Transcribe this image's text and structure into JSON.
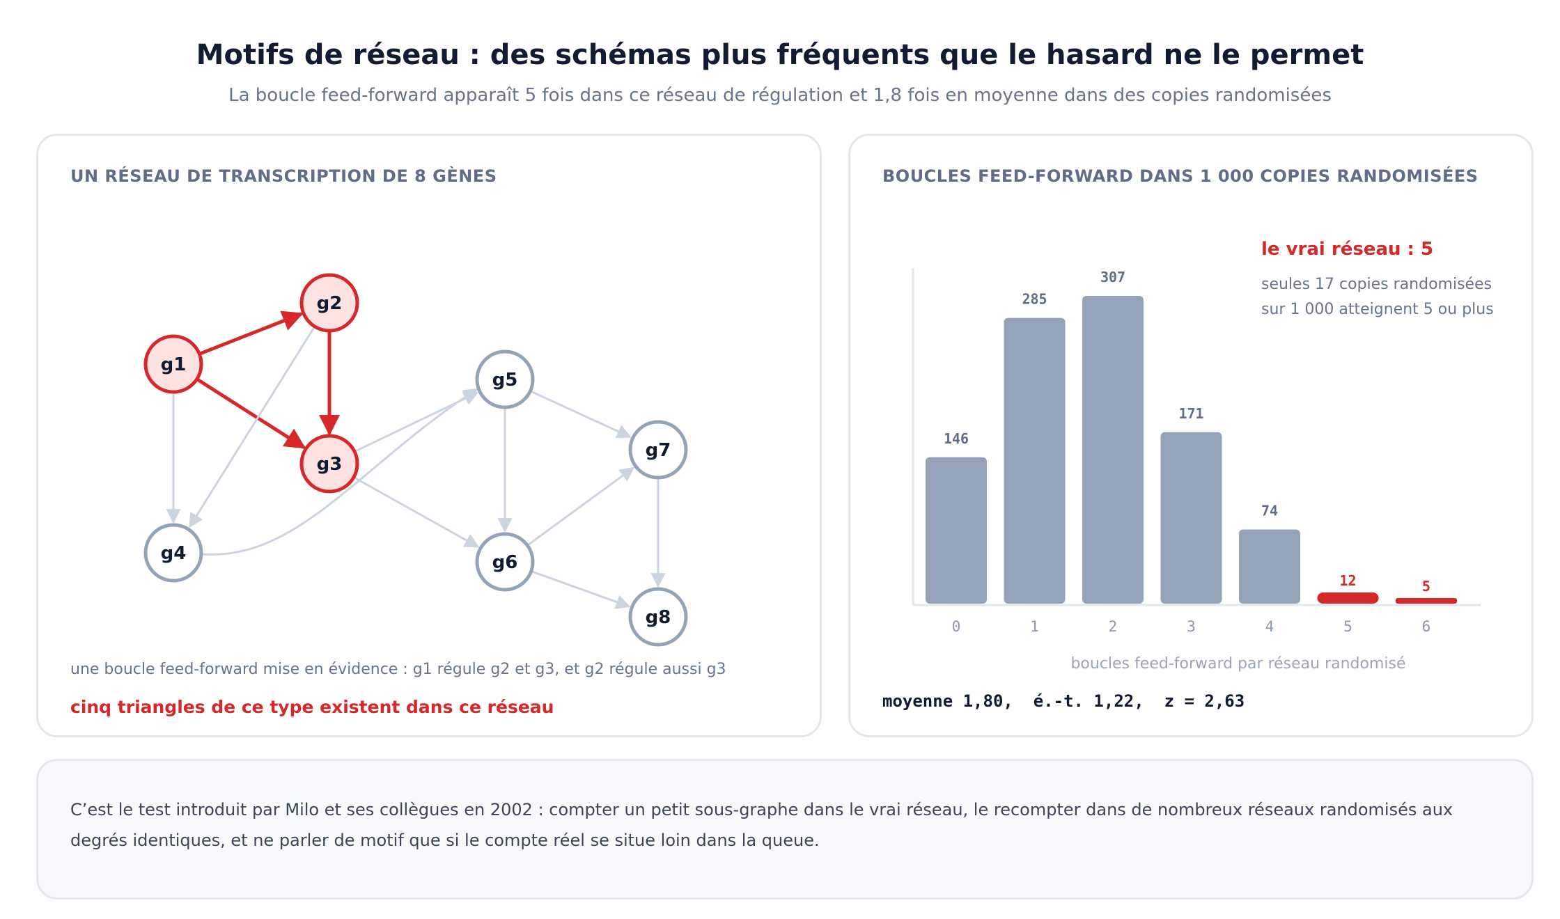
{
  "header": {
    "title": "Motifs de réseau : des schémas plus fréquents que le hasard ne le permet",
    "subtitle": "La boucle feed-forward apparaît 5 fois dans ce réseau de régulation et 1,8 fois en moyenne dans des copies randomisées"
  },
  "network_panel": {
    "heading": "UN RÉSEAU DE TRANSCRIPTION DE 8 GÈNES",
    "nodes": [
      "g1",
      "g2",
      "g3",
      "g4",
      "g5",
      "g6",
      "g7",
      "g8"
    ],
    "highlighted_nodes": [
      "g1",
      "g2",
      "g3"
    ],
    "edges": [
      {
        "from": "g1",
        "to": "g2",
        "highlighted": true
      },
      {
        "from": "g1",
        "to": "g3",
        "highlighted": true
      },
      {
        "from": "g2",
        "to": "g3",
        "highlighted": true
      },
      {
        "from": "g1",
        "to": "g4",
        "highlighted": false
      },
      {
        "from": "g2",
        "to": "g4",
        "highlighted": false
      },
      {
        "from": "g3",
        "to": "g5",
        "highlighted": false
      },
      {
        "from": "g3",
        "to": "g6",
        "highlighted": false
      },
      {
        "from": "g4",
        "to": "g5",
        "highlighted": false
      },
      {
        "from": "g5",
        "to": "g6",
        "highlighted": false
      },
      {
        "from": "g5",
        "to": "g7",
        "highlighted": false
      },
      {
        "from": "g6",
        "to": "g7",
        "highlighted": false
      },
      {
        "from": "g6",
        "to": "g8",
        "highlighted": false
      },
      {
        "from": "g7",
        "to": "g8",
        "highlighted": false
      }
    ],
    "caption": "une boucle feed-forward mise en évidence : g1 régule g2 et g3, et g2 régule aussi g3",
    "caption_strong": "cinq triangles de ce type existent dans ce réseau"
  },
  "histogram_panel": {
    "heading": "BOUCLES FEED-FORWARD DANS 1 000 COPIES RANDOMISÉES",
    "annotation_title": "le vrai réseau : 5",
    "annotation_body": "seules 17 copies randomisées sur 1 000 atteignent 5 ou plus",
    "stats": "moyenne 1,80,  é.-t. 1,22,  z = 2,63"
  },
  "chart_data": {
    "type": "bar",
    "title": "BOUCLES FEED-FORWARD DANS 1 000 COPIES RANDOMISÉES",
    "xlabel": "boucles feed-forward par réseau randomisé",
    "ylabel": "",
    "categories": [
      "0",
      "1",
      "2",
      "3",
      "4",
      "5",
      "6"
    ],
    "values": [
      146,
      285,
      307,
      171,
      74,
      12,
      5
    ],
    "highlighted_categories": [
      "5",
      "6"
    ],
    "ylim": [
      0,
      307
    ],
    "grid": false,
    "legend": "none"
  },
  "note": {
    "text": "C’est le test introduit par Milo et ses collègues en 2002 : compter un petit sous-graphe dans le vrai réseau, le recompter dans de nombreux réseaux randomisés aux degrés identiques, et ne parler de motif que si le compte réel se situe loin dans la queue."
  },
  "colors": {
    "highlight": "#d62828",
    "highlight_fill": "#fde2e2",
    "node_stroke": "#94a3b8",
    "edge": "#cbd4e0",
    "bar": "#94a3b8"
  }
}
